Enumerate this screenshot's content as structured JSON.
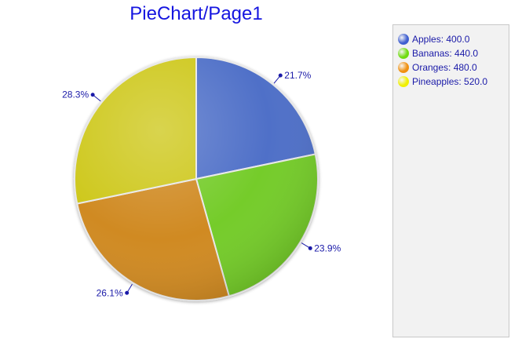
{
  "chart_data": {
    "type": "pie",
    "title": "PieChart/Page1",
    "categories": [
      "Apples",
      "Bananas",
      "Oranges",
      "Pineapples"
    ],
    "values": [
      400.0,
      440.0,
      480.0,
      520.0
    ],
    "percent_labels": [
      "21.7%",
      "23.9%",
      "26.1%",
      "28.3%"
    ],
    "legend_entries": [
      "Apples: 400.0",
      "Bananas: 440.0",
      "Oranges: 480.0",
      "Pineapples: 520.0"
    ],
    "colors": [
      "#4f6fc8",
      "#74cc2c",
      "#d08a22",
      "#cec81e"
    ],
    "legend_colors": [
      "#3f5fd0",
      "#70dc10",
      "#f09010",
      "#f0f000"
    ],
    "legend_position": "right",
    "start_angle": "12 o'clock, clockwise"
  }
}
